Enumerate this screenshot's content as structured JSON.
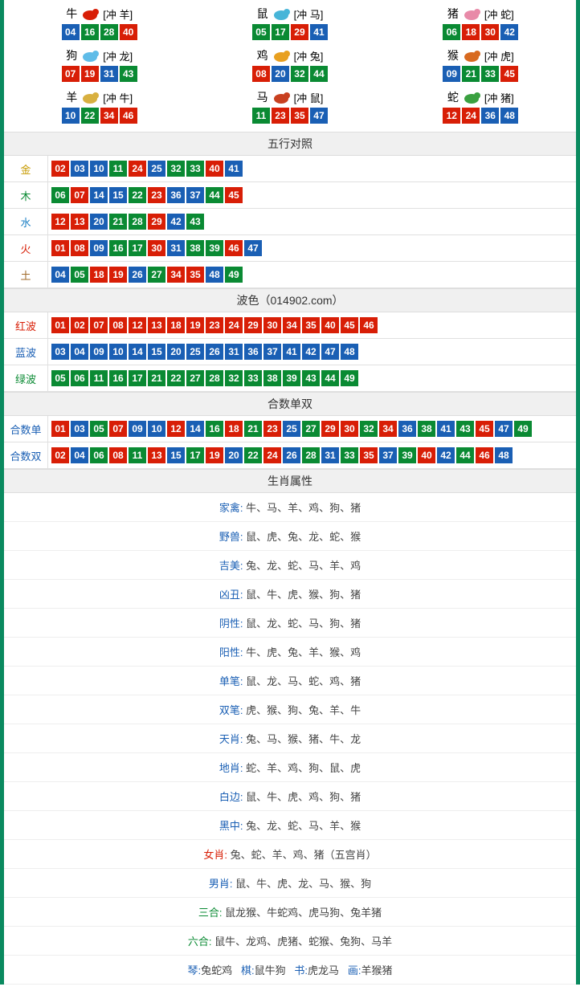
{
  "colors": {
    "red": "#d81e06",
    "blue": "#1a5fb4",
    "green": "#0a8a33",
    "border": "#0a8a5f"
  },
  "numColorMap": {
    "red": [
      "01",
      "02",
      "07",
      "08",
      "12",
      "13",
      "18",
      "19",
      "23",
      "24",
      "29",
      "30",
      "34",
      "35",
      "40",
      "45",
      "46"
    ],
    "blue": [
      "03",
      "04",
      "09",
      "10",
      "14",
      "15",
      "20",
      "25",
      "26",
      "31",
      "36",
      "37",
      "41",
      "42",
      "47",
      "48"
    ],
    "green": [
      "05",
      "06",
      "11",
      "16",
      "17",
      "21",
      "22",
      "27",
      "28",
      "32",
      "33",
      "38",
      "39",
      "43",
      "44",
      "49"
    ]
  },
  "zodiac": [
    {
      "name": "牛",
      "chong": "[冲 羊]",
      "nums": [
        "04",
        "16",
        "28",
        "40"
      ],
      "iconColor": "#d81e06"
    },
    {
      "name": "鼠",
      "chong": "[冲 马]",
      "nums": [
        "05",
        "17",
        "29",
        "41"
      ],
      "iconColor": "#47b5d8"
    },
    {
      "name": "猪",
      "chong": "[冲 蛇]",
      "nums": [
        "06",
        "18",
        "30",
        "42"
      ],
      "iconColor": "#e88aa8"
    },
    {
      "name": "狗",
      "chong": "[冲 龙]",
      "nums": [
        "07",
        "19",
        "31",
        "43"
      ],
      "iconColor": "#5fbce8"
    },
    {
      "name": "鸡",
      "chong": "[冲 兔]",
      "nums": [
        "08",
        "20",
        "32",
        "44"
      ],
      "iconColor": "#e8a020"
    },
    {
      "name": "猴",
      "chong": "[冲 虎]",
      "nums": [
        "09",
        "21",
        "33",
        "45"
      ],
      "iconColor": "#d86a20"
    },
    {
      "name": "羊",
      "chong": "[冲 牛]",
      "nums": [
        "10",
        "22",
        "34",
        "46"
      ],
      "iconColor": "#d8b040"
    },
    {
      "name": "马",
      "chong": "[冲 鼠]",
      "nums": [
        "11",
        "23",
        "35",
        "47"
      ],
      "iconColor": "#c84020"
    },
    {
      "name": "蛇",
      "chong": "[冲 猪]",
      "nums": [
        "12",
        "24",
        "36",
        "48"
      ],
      "iconColor": "#3aa040"
    }
  ],
  "sections": {
    "wuxing": {
      "title": "五行对照",
      "rows": [
        {
          "label": "金",
          "labelClass": "lbl-gold",
          "nums": [
            "02",
            "03",
            "10",
            "11",
            "24",
            "25",
            "32",
            "33",
            "40",
            "41"
          ]
        },
        {
          "label": "木",
          "labelClass": "lbl-wood",
          "nums": [
            "06",
            "07",
            "14",
            "15",
            "22",
            "23",
            "36",
            "37",
            "44",
            "45"
          ]
        },
        {
          "label": "水",
          "labelClass": "lbl-water",
          "nums": [
            "12",
            "13",
            "20",
            "21",
            "28",
            "29",
            "42",
            "43"
          ]
        },
        {
          "label": "火",
          "labelClass": "lbl-fire",
          "nums": [
            "01",
            "08",
            "09",
            "16",
            "17",
            "30",
            "31",
            "38",
            "39",
            "46",
            "47"
          ]
        },
        {
          "label": "土",
          "labelClass": "lbl-earth",
          "nums": [
            "04",
            "05",
            "18",
            "19",
            "26",
            "27",
            "34",
            "35",
            "48",
            "49"
          ]
        }
      ]
    },
    "bose": {
      "title": "波色（014902.com）",
      "rows": [
        {
          "label": "红波",
          "labelClass": "lbl-red",
          "nums": [
            "01",
            "02",
            "07",
            "08",
            "12",
            "13",
            "18",
            "19",
            "23",
            "24",
            "29",
            "30",
            "34",
            "35",
            "40",
            "45",
            "46"
          ]
        },
        {
          "label": "蓝波",
          "labelClass": "lbl-blue",
          "nums": [
            "03",
            "04",
            "09",
            "10",
            "14",
            "15",
            "20",
            "25",
            "26",
            "31",
            "36",
            "37",
            "41",
            "42",
            "47",
            "48"
          ]
        },
        {
          "label": "绿波",
          "labelClass": "lbl-green",
          "nums": [
            "05",
            "06",
            "11",
            "16",
            "17",
            "21",
            "22",
            "27",
            "28",
            "32",
            "33",
            "38",
            "39",
            "43",
            "44",
            "49"
          ]
        }
      ]
    },
    "heshu": {
      "title": "合数单双",
      "rows": [
        {
          "label": "合数单",
          "labelClass": "lbl-blue",
          "nums": [
            "01",
            "03",
            "05",
            "07",
            "09",
            "10",
            "12",
            "14",
            "16",
            "18",
            "21",
            "23",
            "25",
            "27",
            "29",
            "30",
            "32",
            "34",
            "36",
            "38",
            "41",
            "43",
            "45",
            "47",
            "49"
          ]
        },
        {
          "label": "合数双",
          "labelClass": "lbl-blue",
          "nums": [
            "02",
            "04",
            "06",
            "08",
            "11",
            "13",
            "15",
            "17",
            "19",
            "20",
            "22",
            "24",
            "26",
            "28",
            "31",
            "33",
            "35",
            "37",
            "39",
            "40",
            "42",
            "44",
            "46",
            "48"
          ]
        }
      ]
    },
    "attrs": {
      "title": "生肖属性",
      "rows": [
        {
          "label": "家禽",
          "labelClass": "attr-label",
          "value": "牛、马、羊、鸡、狗、猪"
        },
        {
          "label": "野兽",
          "labelClass": "attr-label",
          "value": "鼠、虎、兔、龙、蛇、猴"
        },
        {
          "label": "吉美",
          "labelClass": "attr-label",
          "value": "兔、龙、蛇、马、羊、鸡"
        },
        {
          "label": "凶丑",
          "labelClass": "attr-label",
          "value": "鼠、牛、虎、猴、狗、猪"
        },
        {
          "label": "阴性",
          "labelClass": "attr-label",
          "value": "鼠、龙、蛇、马、狗、猪"
        },
        {
          "label": "阳性",
          "labelClass": "attr-label",
          "value": "牛、虎、兔、羊、猴、鸡"
        },
        {
          "label": "单笔",
          "labelClass": "attr-label",
          "value": "鼠、龙、马、蛇、鸡、猪"
        },
        {
          "label": "双笔",
          "labelClass": "attr-label",
          "value": "虎、猴、狗、兔、羊、牛"
        },
        {
          "label": "天肖",
          "labelClass": "attr-label",
          "value": "兔、马、猴、猪、牛、龙"
        },
        {
          "label": "地肖",
          "labelClass": "attr-label",
          "value": "蛇、羊、鸡、狗、鼠、虎"
        },
        {
          "label": "白边",
          "labelClass": "attr-label",
          "value": "鼠、牛、虎、鸡、狗、猪"
        },
        {
          "label": "黑中",
          "labelClass": "attr-label",
          "value": "兔、龙、蛇、马、羊、猴"
        },
        {
          "label": "女肖",
          "labelClass": "attr-label-r",
          "value": "兔、蛇、羊、鸡、猪（五宫肖）"
        },
        {
          "label": "男肖",
          "labelClass": "attr-label",
          "value": "鼠、牛、虎、龙、马、猴、狗"
        },
        {
          "label": "三合",
          "labelClass": "attr-label-g",
          "value": "鼠龙猴、牛蛇鸡、虎马狗、兔羊猪"
        },
        {
          "label": "六合",
          "labelClass": "attr-label-g",
          "value": "鼠牛、龙鸡、虎猪、蛇猴、兔狗、马羊"
        }
      ],
      "footer": [
        {
          "label": "琴",
          "labelClass": "attr-label",
          "value": "兔蛇鸡"
        },
        {
          "label": "棋",
          "labelClass": "attr-label",
          "value": "鼠牛狗"
        },
        {
          "label": "书",
          "labelClass": "attr-label",
          "value": "虎龙马"
        },
        {
          "label": "画",
          "labelClass": "attr-label",
          "value": "羊猴猪"
        }
      ]
    }
  }
}
